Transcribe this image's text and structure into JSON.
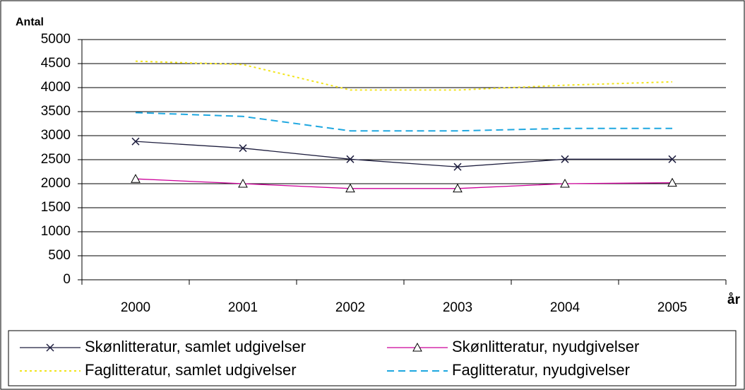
{
  "chart_data": {
    "type": "line",
    "y_label": "Antal",
    "x_label": "år",
    "categories": [
      "2000",
      "2001",
      "2002",
      "2003",
      "2004",
      "2005"
    ],
    "series": [
      {
        "name": "Skønlitteratur, samlet udgivelser",
        "color": "#1f1f3f",
        "marker": "x",
        "line_style": "solid",
        "values": [
          2880,
          2740,
          2510,
          2350,
          2510,
          2510
        ]
      },
      {
        "name": "Skønlitteratur, nyudgivelser",
        "color": "#cc0099",
        "marker": "triangle",
        "line_style": "solid",
        "values": [
          2100,
          2000,
          1900,
          1900,
          2000,
          2020
        ]
      },
      {
        "name": "Faglitteratur, samlet udgivelser",
        "color": "#f2e41a",
        "marker": "none",
        "line_style": "dotted",
        "values": [
          4550,
          4480,
          3950,
          3950,
          4050,
          4120
        ]
      },
      {
        "name": "Faglitteratur, nyudgivelser",
        "color": "#1ea7e0",
        "marker": "none",
        "line_style": "dashed",
        "values": [
          3480,
          3400,
          3100,
          3100,
          3150,
          3150
        ]
      }
    ],
    "ylim": [
      0,
      5000
    ],
    "yticks": [
      0,
      500,
      1000,
      1500,
      2000,
      2500,
      3000,
      3500,
      4000,
      4500,
      5000
    ],
    "grid": true,
    "legend": "bottom"
  }
}
